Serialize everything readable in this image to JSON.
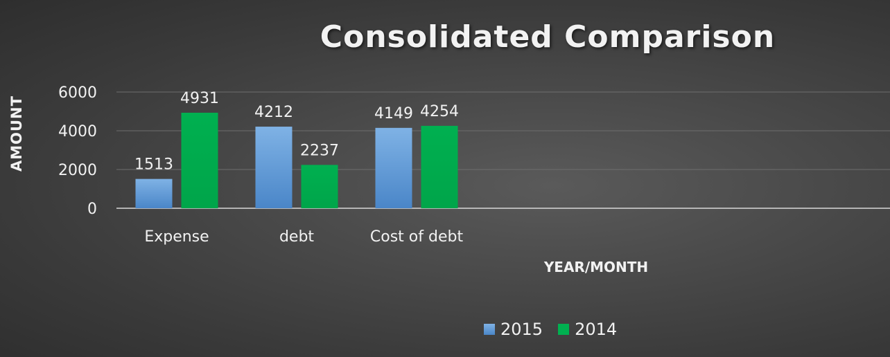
{
  "chart_data": {
    "type": "bar",
    "title": "Consolidated Comparison",
    "xlabel": "YEAR/MONTH",
    "ylabel": "AMOUNT",
    "categories": [
      "Expense",
      "debt",
      "Cost of debt"
    ],
    "series": [
      {
        "name": "2015",
        "values": [
          1513,
          4212,
          4149
        ],
        "color": "#5b9bd5"
      },
      {
        "name": "2014",
        "values": [
          4931,
          2237,
          4254
        ],
        "color": "#00b050"
      }
    ],
    "yticks": [
      "0",
      "2000",
      "4000",
      "6000"
    ],
    "ylim": [
      0,
      6000
    ],
    "grid": true,
    "legend_position": "bottom",
    "data_labels": true
  }
}
